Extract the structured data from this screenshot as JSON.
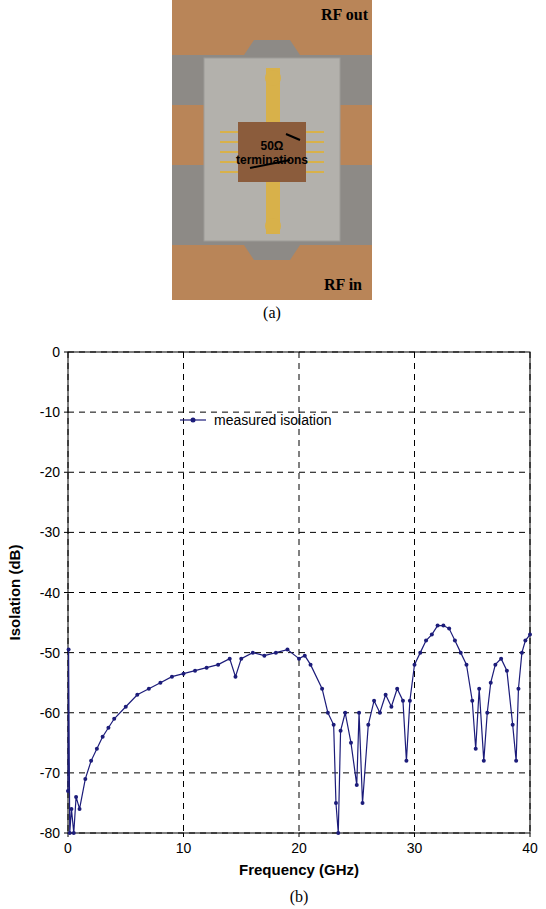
{
  "chart_data": {
    "type": "line",
    "caption": "(b)",
    "x_label": "Frequency (GHz)",
    "y_label": "Isolation (dB)",
    "xlim": [
      0,
      40
    ],
    "ylim": [
      -80,
      0
    ],
    "xticks": [
      0,
      10,
      20,
      30,
      40
    ],
    "yticks": [
      -80,
      -70,
      -60,
      -50,
      -40,
      -30,
      -20,
      -10,
      0
    ],
    "grid": true,
    "legend": "upper-left",
    "series": [
      {
        "name": "measured isolation",
        "color": "#1c1c7a",
        "marker": "circle",
        "line_style": "solid",
        "x": [
          0,
          0.05,
          0.15,
          0.3,
          0.5,
          0.7,
          1,
          1.5,
          2,
          2.5,
          3,
          3.5,
          4,
          5,
          6,
          7,
          8,
          9,
          10,
          11,
          12,
          13,
          14,
          14.5,
          15,
          16,
          17,
          18,
          19,
          20,
          20.5,
          21,
          22,
          22.5,
          23,
          23.2,
          23.4,
          23.6,
          24,
          24.5,
          25,
          25.2,
          25.5,
          26,
          26.5,
          27,
          27.5,
          28,
          28.5,
          29,
          29.3,
          29.6,
          30,
          30.5,
          31,
          31.5,
          32,
          32.5,
          33,
          33.5,
          34,
          34.5,
          35,
          35.3,
          35.6,
          36,
          36.3,
          36.6,
          37,
          37.5,
          38,
          38.5,
          38.8,
          39,
          39.3,
          39.6,
          40
        ],
        "values": [
          -73,
          -49.5,
          -80,
          -76,
          -80,
          -74,
          -76,
          -71,
          -68,
          -66,
          -64,
          -62.5,
          -61,
          -59,
          -57,
          -56,
          -55,
          -54,
          -53.5,
          -53,
          -52.5,
          -52,
          -51,
          -54,
          -51,
          -50,
          -50.5,
          -50,
          -49.5,
          -51,
          -50.5,
          -52,
          -56,
          -60,
          -62,
          -75,
          -80,
          -63,
          -60,
          -65,
          -72,
          -60,
          -75,
          -62,
          -58,
          -60,
          -57,
          -59,
          -56,
          -58,
          -68,
          -58,
          -52,
          -50,
          -48,
          -47,
          -45.5,
          -45.5,
          -46,
          -48,
          -50,
          -52,
          -58,
          -66,
          -56,
          -68,
          -60,
          -55,
          -52,
          -51,
          -53,
          -62,
          -68,
          -56,
          -50,
          -48,
          -47
        ]
      }
    ]
  },
  "photo": {
    "top_label": "RF out",
    "bottom_label": "RF in",
    "annotation": "50Ω terminations",
    "caption": "(a)"
  }
}
